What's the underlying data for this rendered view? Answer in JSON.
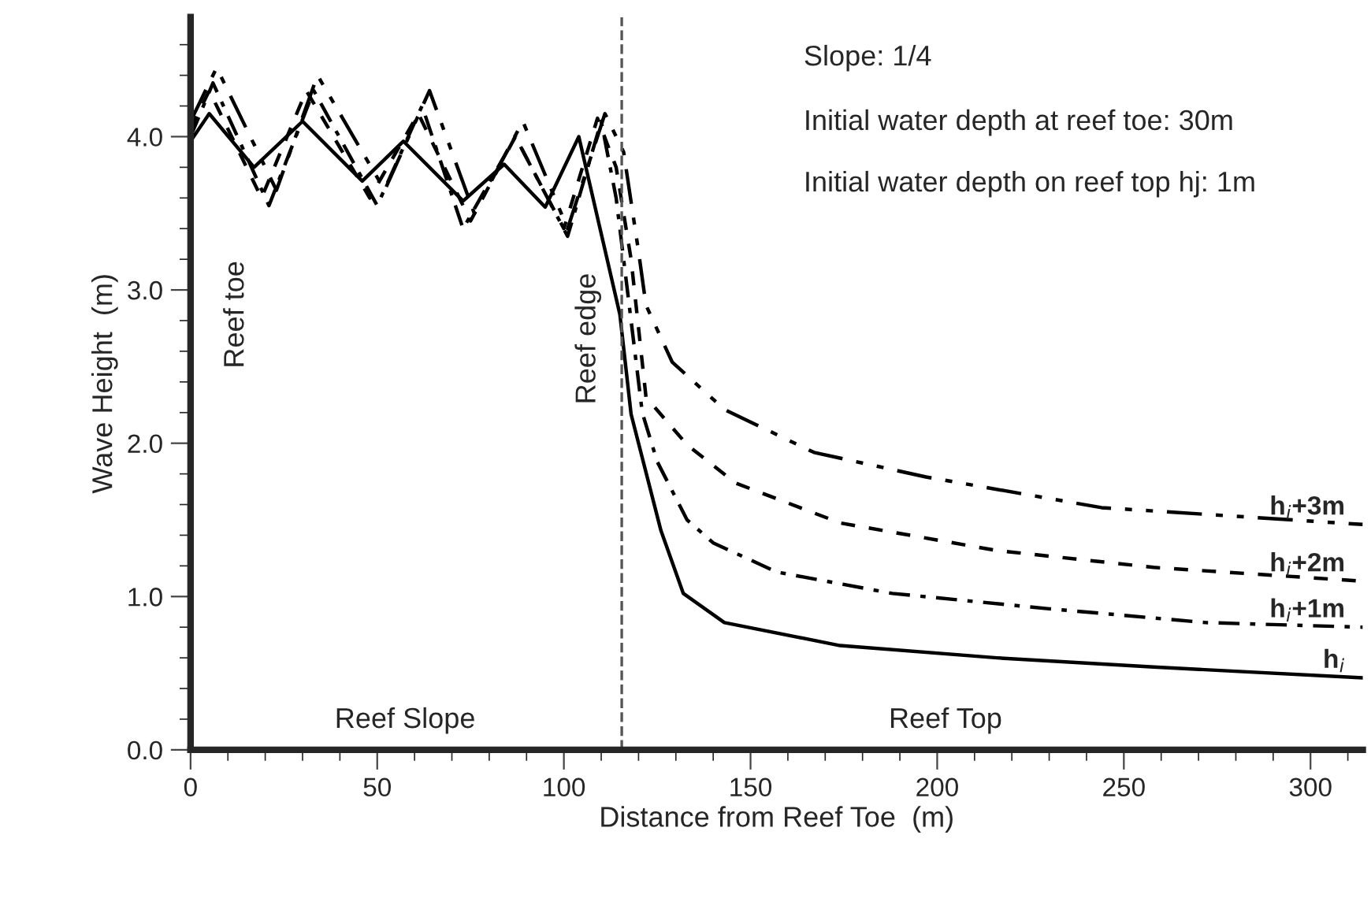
{
  "chart_data": {
    "type": "line",
    "xlabel": "Distance from Reef Toe  (m)",
    "ylabel": "Wave Height  (m)",
    "xlim": [
      0,
      314
    ],
    "ylim": [
      0,
      4.78
    ],
    "xticks": [
      0,
      50,
      100,
      150,
      200,
      250,
      300
    ],
    "yticks": [
      {
        "value": 0,
        "label": "0.0"
      },
      {
        "value": 1,
        "label": "1.0"
      },
      {
        "value": 2,
        "label": "2.0"
      },
      {
        "value": 3,
        "label": "3.0"
      },
      {
        "value": 4,
        "label": "4.0"
      }
    ],
    "grid": false,
    "legend": false,
    "marker": "none",
    "ref_lines": [
      {
        "axis": "x",
        "value": 115.5,
        "color": "#555555",
        "line_style": "dashed"
      }
    ],
    "annotations": [
      "Slope: 1/4",
      "Initial water depth at reef toe: 30m",
      "Initial water depth on reef top hj: 1m",
      "Reef toe",
      "Reef edge",
      "Reef Slope",
      "Reef Top"
    ],
    "series": [
      {
        "name": "h$_{i}$",
        "color": "#000000",
        "line_style": "solid",
        "x": [
          0,
          5,
          17,
          30,
          46,
          57,
          73,
          84,
          95,
          104,
          115,
          118,
          126,
          132,
          143,
          174,
          216,
          258,
          314
        ],
        "values": [
          3.97,
          4.15,
          3.8,
          4.1,
          3.71,
          3.97,
          3.58,
          3.82,
          3.54,
          4.0,
          2.84,
          2.19,
          1.43,
          1.02,
          0.83,
          0.68,
          0.6,
          0.54,
          0.47
        ]
      },
      {
        "name": "h$_{i}$+1m",
        "color": "#000000",
        "line_style": "dashed",
        "x": [
          0,
          6,
          21,
          33,
          50,
          62,
          73,
          87,
          101,
          110,
          114,
          118,
          121,
          125,
          133,
          140,
          157,
          188,
          230,
          272,
          314
        ],
        "values": [
          4.0,
          4.35,
          3.55,
          4.3,
          3.55,
          4.2,
          3.4,
          4.0,
          3.35,
          4.1,
          3.6,
          2.8,
          2.2,
          1.88,
          1.5,
          1.35,
          1.16,
          1.02,
          0.92,
          0.83,
          0.8
        ]
      },
      {
        "name": "h$_{i}$+2m",
        "color": "#000000",
        "line_style": "dashed",
        "x": [
          0,
          5,
          19,
          31,
          48,
          61,
          75,
          87,
          100,
          109,
          114,
          118,
          122,
          133,
          146,
          174,
          216,
          258,
          314
        ],
        "values": [
          4.05,
          4.3,
          3.6,
          4.3,
          3.6,
          4.15,
          3.45,
          4.0,
          3.4,
          4.12,
          3.8,
          3.2,
          2.3,
          1.99,
          1.74,
          1.48,
          1.3,
          1.19,
          1.1
        ]
      },
      {
        "name": "h$_{i}$+3m",
        "color": "#000000",
        "line_style": "dashed",
        "x": [
          0,
          7,
          23,
          34,
          52,
          64,
          76,
          89,
          101,
          111,
          116,
          120,
          122,
          129,
          143,
          167,
          197,
          244,
          314
        ],
        "values": [
          4.1,
          4.45,
          3.65,
          4.4,
          3.65,
          4.3,
          3.5,
          4.1,
          3.4,
          4.15,
          3.9,
          3.25,
          2.9,
          2.53,
          2.22,
          1.94,
          1.78,
          1.58,
          1.47
        ]
      }
    ]
  }
}
